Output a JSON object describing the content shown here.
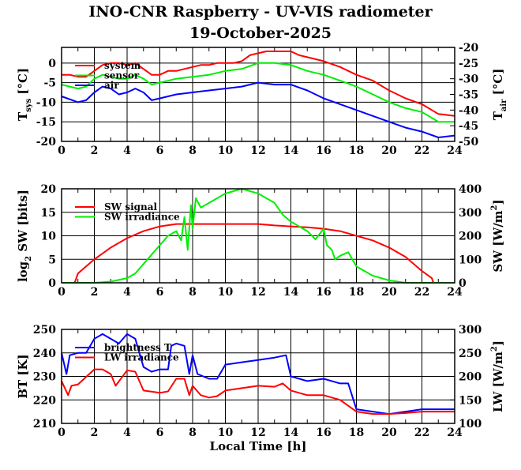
{
  "title": "INO-CNR Raspberry - UV-VIS radiometer",
  "subtitle": "19-October-2025",
  "colors": {
    "red": "#ff0000",
    "green": "#00ee00",
    "blue": "#0000ff"
  },
  "chart_data": [
    {
      "type": "line",
      "ylabel": {
        "main": "T",
        "sub": "sys",
        "rest": " [°C]"
      },
      "y2label": {
        "main": "T",
        "sub": "air",
        "rest": " [°C]"
      },
      "xlim": [
        0,
        24
      ],
      "ylim": [
        -20,
        4
      ],
      "y2lim": [
        -50,
        -20
      ],
      "xticks": [
        0,
        2,
        4,
        6,
        8,
        10,
        12,
        14,
        16,
        18,
        20,
        22,
        24
      ],
      "yticks": [
        -20,
        -15,
        -10,
        -5,
        0
      ],
      "y2ticks": [
        -50,
        -45,
        -40,
        -35,
        -30,
        -25,
        -20
      ],
      "grid": true,
      "legend": "top-left",
      "series": [
        {
          "name": "system",
          "color": "#ff0000",
          "axis": "left",
          "x": [
            0,
            0.5,
            1,
            1.5,
            2,
            2.5,
            3,
            3.5,
            4,
            4.5,
            5,
            5.5,
            6,
            6.5,
            7,
            7.5,
            8,
            8.5,
            9,
            9.5,
            10,
            10.5,
            11,
            11.5,
            12,
            12.5,
            13,
            13.5,
            14,
            14.5,
            15,
            16,
            17,
            18,
            19,
            20,
            21,
            22,
            23,
            24
          ],
          "y": [
            -3,
            -3,
            -3.5,
            -3.5,
            -2,
            -0.5,
            0,
            0,
            -0.5,
            0,
            -1.5,
            -3,
            -3,
            -2,
            -2,
            -1.5,
            -1,
            -0.5,
            -0.5,
            0,
            0,
            0,
            0.5,
            2,
            2.5,
            3,
            3,
            3,
            3,
            2,
            1.5,
            0.5,
            -1,
            -3,
            -4.5,
            -7,
            -9,
            -10.5,
            -13,
            -13.5
          ]
        },
        {
          "name": "sensor",
          "color": "#00ee00",
          "axis": "left",
          "x": [
            0,
            1,
            1.5,
            2,
            2.5,
            3,
            3.5,
            4,
            4.5,
            5,
            5.5,
            6,
            7,
            8,
            9,
            10,
            11,
            12,
            13,
            14,
            15,
            16,
            17,
            18,
            19,
            20,
            21,
            22,
            23,
            24
          ],
          "y": [
            -5.5,
            -6.5,
            -6,
            -4,
            -3,
            -3.5,
            -4,
            -4,
            -3,
            -4,
            -5.5,
            -5,
            -4,
            -3.5,
            -3,
            -2,
            -1.5,
            0,
            0,
            -0.5,
            -2,
            -3,
            -4.5,
            -6,
            -8,
            -10,
            -11.5,
            -12.5,
            -15,
            -15
          ]
        },
        {
          "name": "air",
          "color": "#0000ff",
          "axis": "left",
          "x": [
            0,
            1,
            1.5,
            2,
            2.5,
            3,
            3.5,
            4,
            4.5,
            5,
            5.5,
            6,
            7,
            8,
            9,
            10,
            11,
            12,
            13,
            14,
            15,
            16,
            17,
            18,
            19,
            20,
            21,
            22,
            23,
            24
          ],
          "y": [
            -8.5,
            -10,
            -9.5,
            -7.5,
            -6,
            -6.5,
            -8,
            -7.5,
            -6.5,
            -7.5,
            -9.5,
            -9,
            -8,
            -7.5,
            -7,
            -6.5,
            -6,
            -5,
            -5.5,
            -5.5,
            -7,
            -9,
            -10.5,
            -12,
            -13.5,
            -15,
            -16.5,
            -17.5,
            -19,
            -18.5
          ]
        }
      ]
    },
    {
      "type": "line",
      "ylabel": {
        "main": "log",
        "sub": "2",
        "rest": " SW [bits]"
      },
      "y2label": {
        "main": "SW [W/m",
        "sup": "2",
        "rest": "]"
      },
      "xlim": [
        0,
        24
      ],
      "ylim": [
        0,
        20
      ],
      "y2lim": [
        0,
        400
      ],
      "xticks": [
        0,
        2,
        4,
        6,
        8,
        10,
        12,
        14,
        16,
        18,
        20,
        22,
        24
      ],
      "yticks": [
        0,
        5,
        10,
        15,
        20
      ],
      "y2ticks": [
        0,
        100,
        200,
        300,
        400
      ],
      "grid": true,
      "legend": "top-left",
      "series": [
        {
          "name": "SW signal",
          "color": "#ff0000",
          "axis": "left",
          "x": [
            0.8,
            1,
            2,
            3,
            4,
            5,
            6,
            7,
            8,
            9,
            10,
            11,
            12,
            13,
            14,
            15,
            16,
            17,
            18,
            19,
            20,
            21,
            22,
            22.6,
            22.7
          ],
          "y": [
            0,
            2,
            5,
            7.5,
            9.5,
            11,
            12,
            12.5,
            12.5,
            12.5,
            12.5,
            12.5,
            12.5,
            12.2,
            12,
            11.8,
            11.5,
            11,
            10,
            9,
            7.5,
            5.5,
            2.5,
            1,
            0
          ]
        },
        {
          "name": "SW irradiance",
          "color": "#00ee00",
          "axis": "right",
          "x": [
            0,
            1,
            2,
            3,
            4,
            4.5,
            5,
            5.5,
            6,
            6.5,
            7,
            7.3,
            7.5,
            7.7,
            7.9,
            8,
            8.2,
            8.5,
            9,
            10,
            11,
            12,
            13,
            13.5,
            14,
            15,
            15.5,
            16,
            16.2,
            16.5,
            16.7,
            17,
            17.5,
            18,
            19,
            20,
            21,
            24
          ],
          "y": [
            0,
            0,
            0,
            5,
            20,
            40,
            80,
            120,
            160,
            200,
            220,
            180,
            280,
            140,
            330,
            230,
            360,
            320,
            340,
            380,
            400,
            380,
            340,
            290,
            260,
            220,
            185,
            230,
            160,
            140,
            100,
            115,
            130,
            70,
            30,
            10,
            0,
            0
          ]
        }
      ]
    },
    {
      "type": "line",
      "xlabel": "Local Time [h]",
      "ylabel": {
        "main": "BT [K]"
      },
      "y2label": {
        "main": "LW [W/m",
        "sup": "2",
        "rest": "]"
      },
      "xlim": [
        0,
        24
      ],
      "ylim": [
        210,
        250
      ],
      "y2lim": [
        100,
        300
      ],
      "xticks": [
        0,
        2,
        4,
        6,
        8,
        10,
        12,
        14,
        16,
        18,
        20,
        22,
        24
      ],
      "yticks": [
        210,
        220,
        230,
        240,
        250
      ],
      "y2ticks": [
        100,
        150,
        200,
        250,
        300
      ],
      "grid": true,
      "legend": "top-left",
      "series": [
        {
          "name": "brightness T",
          "color": "#0000ff",
          "axis": "left",
          "x": [
            0,
            0.3,
            0.5,
            1,
            1.5,
            2,
            2.5,
            3,
            3.5,
            4,
            4.5,
            5,
            5.5,
            6,
            6.5,
            6.7,
            7,
            7.5,
            7.8,
            8,
            8.3,
            9,
            9.5,
            10,
            11,
            12,
            13,
            13.7,
            14,
            15,
            16,
            17,
            17.5,
            18,
            19,
            20,
            21,
            22,
            23,
            24
          ],
          "y": [
            240,
            231,
            239,
            240,
            240,
            246,
            248,
            246,
            244,
            248,
            246,
            234,
            232,
            233,
            233,
            243,
            244,
            243,
            231,
            239,
            231,
            229,
            229,
            235,
            236,
            237,
            238,
            239,
            230,
            228,
            229,
            227,
            227,
            216,
            215,
            214,
            215,
            216,
            216,
            216
          ]
        },
        {
          "name": "LW irradiance",
          "color": "#ff0000",
          "axis": "right",
          "x": [
            0,
            0.4,
            0.6,
            1,
            2,
            2.5,
            3,
            3.3,
            4,
            4.5,
            5,
            6,
            6.5,
            7,
            7.5,
            7.8,
            8,
            8.5,
            9,
            9.5,
            10,
            11,
            12,
            13,
            13.5,
            14,
            15,
            16,
            17,
            18,
            19,
            20,
            21,
            22,
            23,
            24
          ],
          "y": [
            190,
            160,
            180,
            183,
            215,
            215,
            205,
            180,
            213,
            210,
            170,
            165,
            168,
            195,
            195,
            160,
            180,
            160,
            155,
            158,
            170,
            175,
            180,
            178,
            185,
            170,
            160,
            160,
            150,
            125,
            120,
            120,
            122,
            125,
            125,
            125
          ]
        }
      ]
    }
  ]
}
